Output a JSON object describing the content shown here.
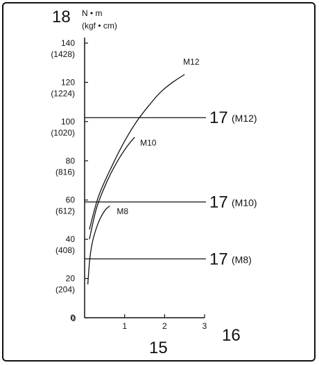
{
  "figure": {
    "y_callout": "18",
    "y_unit_main": "N • m",
    "y_unit_alt": "(kgf • cm)",
    "x_callout": "15",
    "x_axis_callout": "16"
  },
  "chart_data": {
    "type": "line",
    "xlim": [
      0,
      3
    ],
    "ylim": [
      0,
      140
    ],
    "x_ticks": [
      "0",
      "1",
      "2",
      "3"
    ],
    "y_ticks": [
      {
        "value": 0,
        "label": "0",
        "alt": ""
      },
      {
        "value": 20,
        "label": "20",
        "alt": "(204)"
      },
      {
        "value": 40,
        "label": "40",
        "alt": "(408)"
      },
      {
        "value": 60,
        "label": "60",
        "alt": "(612)"
      },
      {
        "value": 80,
        "label": "80",
        "alt": "(816)"
      },
      {
        "value": 100,
        "label": "100",
        "alt": "(1020)"
      },
      {
        "value": 120,
        "label": "120",
        "alt": "(1224)"
      },
      {
        "value": 140,
        "label": "140",
        "alt": "(1428)"
      }
    ],
    "series": [
      {
        "name": "M12",
        "x": [
          0.12,
          0.35,
          0.7,
          1.0,
          1.3,
          1.6,
          1.9,
          2.2,
          2.5
        ],
        "y": [
          45,
          62,
          78,
          90,
          100,
          108,
          115,
          120,
          124
        ]
      },
      {
        "name": "M10",
        "x": [
          0.12,
          0.3,
          0.55,
          0.8,
          1.05,
          1.25
        ],
        "y": [
          40,
          56,
          69,
          79,
          87,
          92
        ]
      },
      {
        "name": "M8",
        "x": [
          0.08,
          0.13,
          0.2,
          0.3,
          0.4,
          0.52,
          0.63
        ],
        "y": [
          17,
          30,
          39,
          46,
          51,
          55,
          57
        ]
      }
    ],
    "reference_lines": [
      {
        "value": 102,
        "number": "17",
        "label": "(M12)"
      },
      {
        "value": 59,
        "number": "17",
        "label": "(M10)"
      },
      {
        "value": 30,
        "number": "17",
        "label": "(M8)"
      }
    ],
    "grid": false
  }
}
